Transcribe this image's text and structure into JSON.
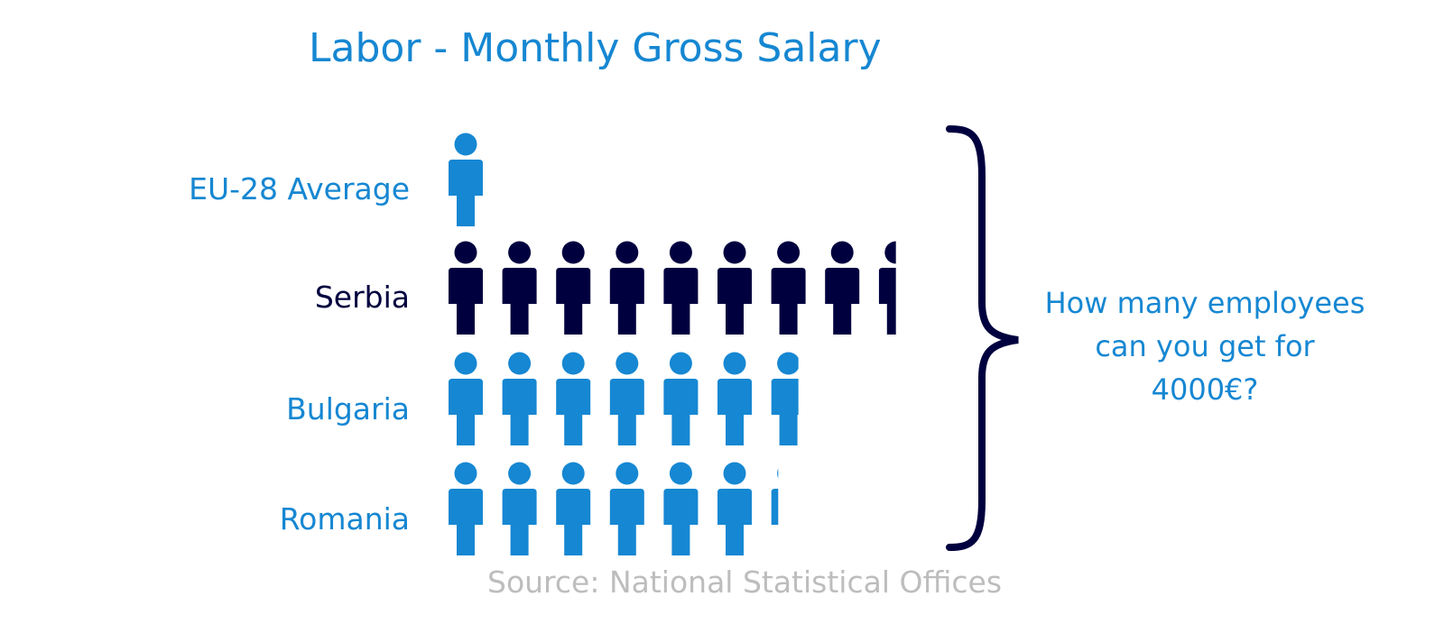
{
  "title": "Labor - Monthly Gross Salary",
  "chart_data": {
    "type": "pictograph",
    "title": "Labor - Monthly Gross Salary",
    "categories": [
      "EU-28 Average",
      "Serbia",
      "Bulgaria",
      "Romania"
    ],
    "values": [
      1.0,
      8.4,
      6.65,
      6.15
    ],
    "value_label": "employees for 4000€",
    "colors": [
      "#1687d2",
      "#00003f",
      "#1687d2",
      "#1687d2"
    ]
  },
  "question": {
    "line1": "How many employees",
    "line2": "can you get for",
    "line3": "4000€?"
  },
  "source": "Source: National Statistical Offices"
}
